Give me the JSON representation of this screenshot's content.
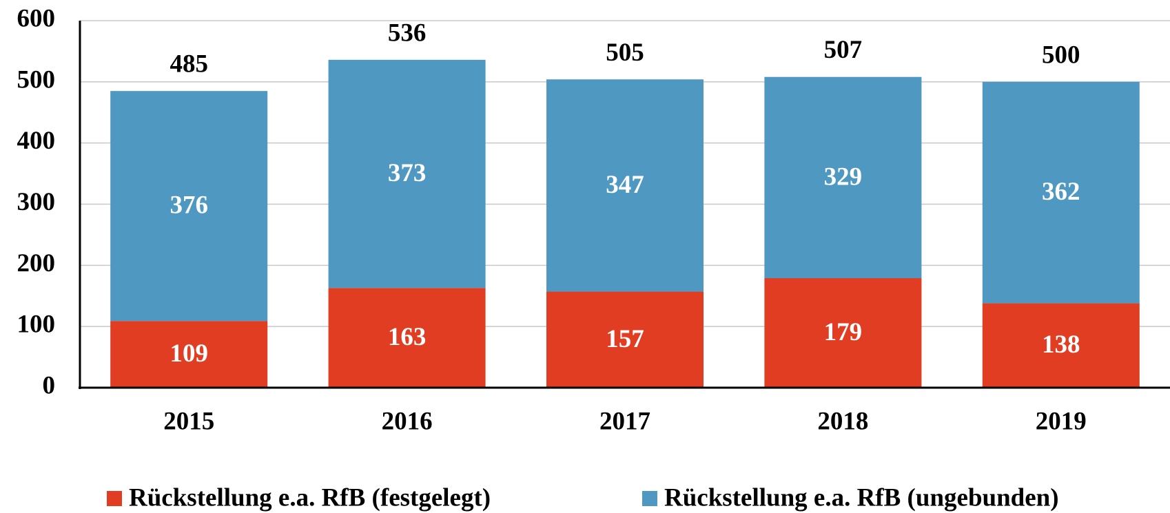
{
  "chart_data": {
    "type": "stacked_bar",
    "categories": [
      "2015",
      "2016",
      "2017",
      "2018",
      "2019"
    ],
    "series": [
      {
        "name": "Rückstellung e.a. RfB (festgelegt)",
        "color": "#e03d23",
        "values": [
          109,
          163,
          157,
          179,
          138
        ]
      },
      {
        "name": "Rückstellung e.a. RfB (ungebunden)",
        "color": "#4f98c2",
        "values": [
          376,
          373,
          347,
          329,
          362
        ]
      }
    ],
    "totals": [
      485,
      536,
      505,
      507,
      500
    ],
    "ylim": [
      0,
      600
    ],
    "yticks": [
      0,
      100,
      200,
      300,
      400,
      500,
      600
    ],
    "grid": true,
    "legend": "bottom"
  }
}
